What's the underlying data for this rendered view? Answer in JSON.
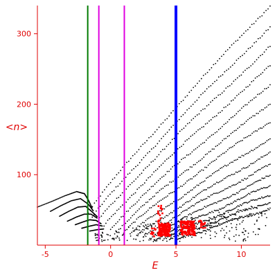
{
  "chart_data": {
    "type": "scatter",
    "title": "",
    "xlabel": "E",
    "ylabel": "<n>",
    "xlim": [
      -5.6,
      12.2
    ],
    "ylim": [
      0,
      340
    ],
    "x_ticks": [
      -5,
      0,
      5,
      10
    ],
    "y_ticks": [
      100,
      200,
      300
    ],
    "x_tick_labels": [
      "-5",
      "0",
      "5",
      "10"
    ],
    "y_tick_labels": [
      "100",
      "200",
      "300"
    ],
    "grid": false,
    "colors": {
      "axes": "#e00000",
      "black_series": "#000000",
      "red_series": "#ff0000",
      "green_line": "#007a00",
      "magenta_line": "#e000e0",
      "blue_line": "#0000ff"
    },
    "vertical_lines": [
      {
        "x": -1.75,
        "color": "#007a00",
        "width": 2
      },
      {
        "x": -0.9,
        "color": "#e000e0",
        "width": 2
      },
      {
        "x": 1.05,
        "color": "#e000e0",
        "width": 2
      },
      {
        "x": 5.0,
        "color": "#0000ff",
        "width": 4
      }
    ],
    "bands": [
      {
        "start": [
          -1.7,
          45
        ],
        "end": [
          12.2,
          340
        ]
      },
      {
        "start": [
          -1.4,
          38
        ],
        "end": [
          12.2,
          310
        ]
      },
      {
        "start": [
          -1.0,
          33
        ],
        "end": [
          12.2,
          282
        ]
      },
      {
        "start": [
          -0.5,
          28
        ],
        "end": [
          12.2,
          254
        ]
      },
      {
        "start": [
          0.0,
          24
        ],
        "end": [
          12.2,
          226
        ]
      },
      {
        "start": [
          0.5,
          20
        ],
        "end": [
          12.2,
          200
        ]
      },
      {
        "start": [
          1.0,
          18
        ],
        "end": [
          12.2,
          176
        ]
      },
      {
        "start": [
          1.5,
          15
        ],
        "end": [
          12.2,
          152
        ]
      },
      {
        "start": [
          2.0,
          13
        ],
        "end": [
          12.2,
          132
        ]
      },
      {
        "start": [
          2.5,
          12
        ],
        "end": [
          12.2,
          114
        ]
      },
      {
        "start": [
          3.0,
          10
        ],
        "end": [
          12.2,
          98
        ]
      },
      {
        "start": [
          3.5,
          9
        ],
        "end": [
          12.2,
          84
        ]
      },
      {
        "start": [
          4.0,
          8
        ],
        "end": [
          12.2,
          72
        ]
      },
      {
        "start": [
          4.5,
          7
        ],
        "end": [
          12.2,
          62
        ]
      },
      {
        "start": [
          5.0,
          6
        ],
        "end": [
          12.2,
          52
        ]
      }
    ],
    "low_branches": [
      [
        [
          -5.6,
          54
        ],
        [
          -4.5,
          62
        ],
        [
          -3.5,
          70
        ],
        [
          -2.6,
          76
        ],
        [
          -2.0,
          73
        ],
        [
          -1.7,
          64
        ],
        [
          -1.4,
          52
        ]
      ],
      [
        [
          -4.6,
          48
        ],
        [
          -3.8,
          56
        ],
        [
          -3.0,
          63
        ],
        [
          -2.3,
          66
        ],
        [
          -1.7,
          58
        ],
        [
          -1.3,
          48
        ]
      ],
      [
        [
          -3.9,
          41
        ],
        [
          -3.2,
          48
        ],
        [
          -2.5,
          54
        ],
        [
          -1.9,
          55
        ],
        [
          -1.4,
          47
        ],
        [
          -1.0,
          40
        ]
      ],
      [
        [
          -3.3,
          34
        ],
        [
          -2.6,
          40
        ],
        [
          -2.0,
          44
        ],
        [
          -1.5,
          44
        ],
        [
          -1.0,
          38
        ]
      ],
      [
        [
          -2.7,
          29
        ],
        [
          -2.1,
          33
        ],
        [
          -1.6,
          36
        ],
        [
          -1.1,
          35
        ],
        [
          -0.7,
          30
        ]
      ],
      [
        [
          -2.2,
          24
        ],
        [
          -1.6,
          27
        ],
        [
          -1.1,
          29
        ],
        [
          -0.6,
          27
        ]
      ],
      [
        [
          -1.6,
          20
        ],
        [
          -1.0,
          22
        ],
        [
          -0.5,
          23
        ]
      ]
    ],
    "red_clusters": [
      {
        "center": [
          4.1,
          22
        ],
        "spread": [
          0.45,
          9
        ],
        "count": 150
      },
      {
        "center": [
          5.9,
          24
        ],
        "spread": [
          0.55,
          10
        ],
        "count": 150
      },
      {
        "center": [
          3.8,
          40
        ],
        "spread": [
          0.2,
          18
        ],
        "count": 18
      },
      {
        "center": [
          7.0,
          30
        ],
        "spread": [
          0.3,
          6
        ],
        "count": 14
      },
      {
        "center": [
          3.2,
          18
        ],
        "spread": [
          0.25,
          6
        ],
        "count": 10
      }
    ]
  }
}
